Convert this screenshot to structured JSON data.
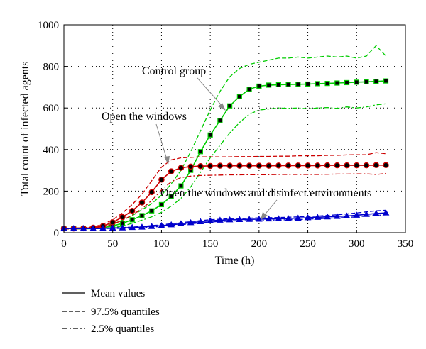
{
  "chart_data": {
    "type": "line",
    "xlabel": "Time (h)",
    "ylabel": "Total count of infected agents",
    "xlim": [
      0,
      350
    ],
    "ylim": [
      0,
      1000
    ],
    "xticks": [
      0,
      50,
      100,
      150,
      200,
      250,
      300,
      350
    ],
    "yticks": [
      0,
      200,
      400,
      600,
      800,
      1000
    ],
    "grid": true,
    "x": [
      0,
      10,
      20,
      30,
      40,
      50,
      60,
      70,
      80,
      90,
      100,
      110,
      120,
      130,
      140,
      150,
      160,
      170,
      180,
      190,
      200,
      210,
      220,
      230,
      240,
      250,
      260,
      270,
      280,
      290,
      300,
      310,
      320,
      330
    ],
    "series": [
      {
        "group": "Control group",
        "color": "#00cc00",
        "marker": "square",
        "mean": [
          20,
          20,
          20,
          21,
          24,
          32,
          45,
          62,
          82,
          105,
          135,
          175,
          225,
          300,
          390,
          470,
          540,
          610,
          655,
          690,
          705,
          710,
          712,
          713,
          714,
          715,
          717,
          718,
          720,
          722,
          724,
          726,
          728,
          730
        ],
        "upper": [
          22,
          22,
          23,
          25,
          30,
          42,
          60,
          82,
          110,
          140,
          180,
          235,
          300,
          390,
          490,
          590,
          680,
          750,
          790,
          810,
          820,
          830,
          840,
          840,
          845,
          840,
          845,
          850,
          845,
          850,
          840,
          850,
          900,
          850
        ],
        "lower": [
          18,
          18,
          18,
          19,
          20,
          24,
          32,
          45,
          60,
          76,
          98,
          128,
          165,
          220,
          290,
          360,
          420,
          480,
          530,
          570,
          590,
          595,
          600,
          598,
          600,
          596,
          600,
          602,
          598,
          605,
          600,
          605,
          615,
          620
        ]
      },
      {
        "group": "Open the windows",
        "color": "#cc0000",
        "marker": "circle",
        "mean": [
          20,
          20,
          21,
          24,
          32,
          50,
          75,
          105,
          145,
          195,
          255,
          295,
          312,
          318,
          320,
          321,
          322,
          322,
          322,
          322,
          322,
          322,
          323,
          323,
          323,
          323,
          323,
          324,
          324,
          324,
          324,
          324,
          325,
          325
        ],
        "upper": [
          22,
          22,
          24,
          28,
          40,
          62,
          95,
          135,
          185,
          250,
          315,
          350,
          360,
          362,
          365,
          365,
          365,
          365,
          366,
          366,
          367,
          367,
          368,
          368,
          370,
          370,
          370,
          372,
          372,
          374,
          375,
          375,
          385,
          380
        ],
        "lower": [
          18,
          18,
          19,
          21,
          26,
          40,
          60,
          85,
          115,
          155,
          205,
          245,
          265,
          272,
          275,
          276,
          277,
          278,
          278,
          279,
          279,
          279,
          280,
          280,
          280,
          280,
          280,
          281,
          282,
          282,
          283,
          283,
          280,
          285
        ]
      },
      {
        "group": "Open the windows and disinfect environments",
        "color": "#0000cc",
        "marker": "triangle",
        "mean": [
          20,
          20,
          20,
          20,
          21,
          22,
          23,
          25,
          27,
          30,
          34,
          38,
          43,
          48,
          53,
          57,
          60,
          62,
          63,
          64,
          65,
          66,
          67,
          68,
          70,
          72,
          74,
          76,
          78,
          80,
          84,
          88,
          92,
          95
        ],
        "upper": [
          21,
          21,
          21,
          21,
          22,
          23,
          25,
          27,
          30,
          34,
          38,
          43,
          48,
          53,
          58,
          62,
          65,
          67,
          68,
          70,
          71,
          72,
          73,
          74,
          76,
          78,
          80,
          83,
          86,
          90,
          95,
          100,
          105,
          108
        ],
        "lower": [
          19,
          19,
          19,
          19,
          20,
          20,
          21,
          22,
          24,
          27,
          30,
          34,
          38,
          43,
          47,
          51,
          54,
          56,
          57,
          58,
          59,
          60,
          61,
          62,
          63,
          65,
          67,
          69,
          71,
          73,
          76,
          80,
          83,
          86
        ]
      }
    ],
    "annotations": [
      {
        "text": "Control group",
        "target": [
          170,
          580
        ]
      },
      {
        "text": "Open the windows",
        "target": [
          110,
          330
        ]
      },
      {
        "text": "Open the windows and disinfect environments",
        "target": [
          205,
          70
        ]
      }
    ],
    "legend": {
      "placement": "bottom-left",
      "entries": [
        {
          "label": "Mean values",
          "style": "solid"
        },
        {
          "label": "97.5% quantiles",
          "style": "dashed"
        },
        {
          "label": "2.5% quantiles",
          "style": "dashdot"
        }
      ]
    }
  }
}
